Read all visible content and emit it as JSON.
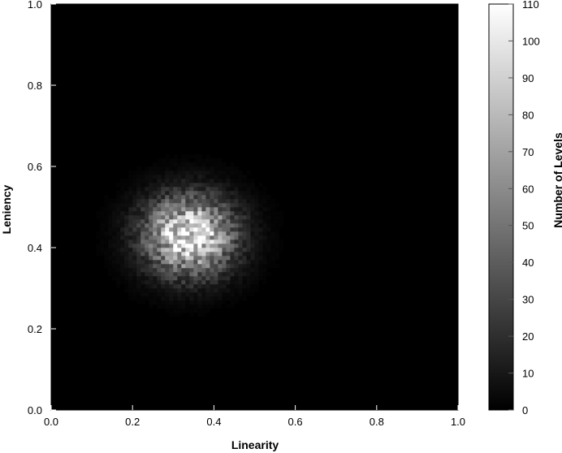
{
  "chart_data": {
    "type": "heatmap",
    "title": "",
    "xlabel": "Linearity",
    "ylabel": "Leniency",
    "colorbar_label": "Number of Levels",
    "xlim": [
      0.0,
      1.0
    ],
    "ylim": [
      0.0,
      1.0
    ],
    "x_ticks": [
      "0.0",
      "0.2",
      "0.4",
      "0.6",
      "0.8",
      "1.0"
    ],
    "y_ticks": [
      "0.0",
      "0.2",
      "0.4",
      "0.6",
      "0.8",
      "1.0"
    ],
    "colorbar_range": [
      0,
      110
    ],
    "colorbar_ticks": [
      "0",
      "10",
      "20",
      "30",
      "40",
      "50",
      "60",
      "70",
      "80",
      "90",
      "100",
      "110"
    ],
    "colormap": [
      "#000000",
      "#ffffff"
    ],
    "bins": [
      100,
      100
    ],
    "distribution": {
      "shape": "gaussian",
      "center": [
        0.34,
        0.43
      ],
      "spread": [
        0.075,
        0.065
      ],
      "peak_count": 105
    },
    "grid": false,
    "legend": "colorbar-right"
  }
}
